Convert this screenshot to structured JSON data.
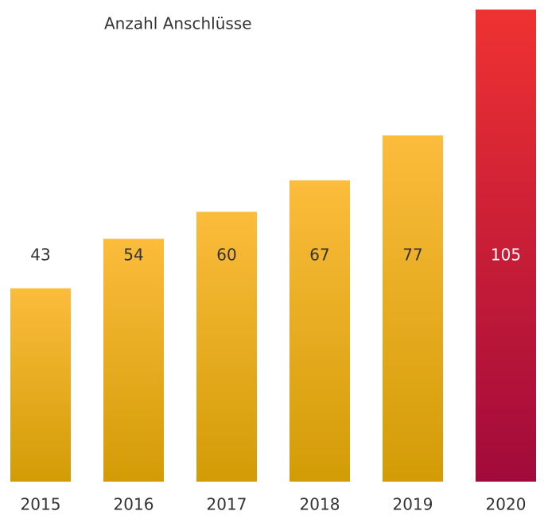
{
  "chart_data": {
    "type": "bar",
    "title": "Anzahl Anschlüsse",
    "categories": [
      "2015",
      "2016",
      "2017",
      "2018",
      "2019",
      "2020"
    ],
    "values": [
      43,
      54,
      60,
      67,
      77,
      105
    ],
    "colors": [
      [
        "#fcbc3c",
        "#d29c06"
      ],
      [
        "#fcbc3c",
        "#d29c06"
      ],
      [
        "#fcbc3c",
        "#d29c06"
      ],
      [
        "#fcbc3c",
        "#d29c06"
      ],
      [
        "#fcbc3c",
        "#d29c06"
      ],
      [
        "#ef3232",
        "#a10a3b"
      ]
    ],
    "ylim": [
      0,
      105
    ]
  }
}
